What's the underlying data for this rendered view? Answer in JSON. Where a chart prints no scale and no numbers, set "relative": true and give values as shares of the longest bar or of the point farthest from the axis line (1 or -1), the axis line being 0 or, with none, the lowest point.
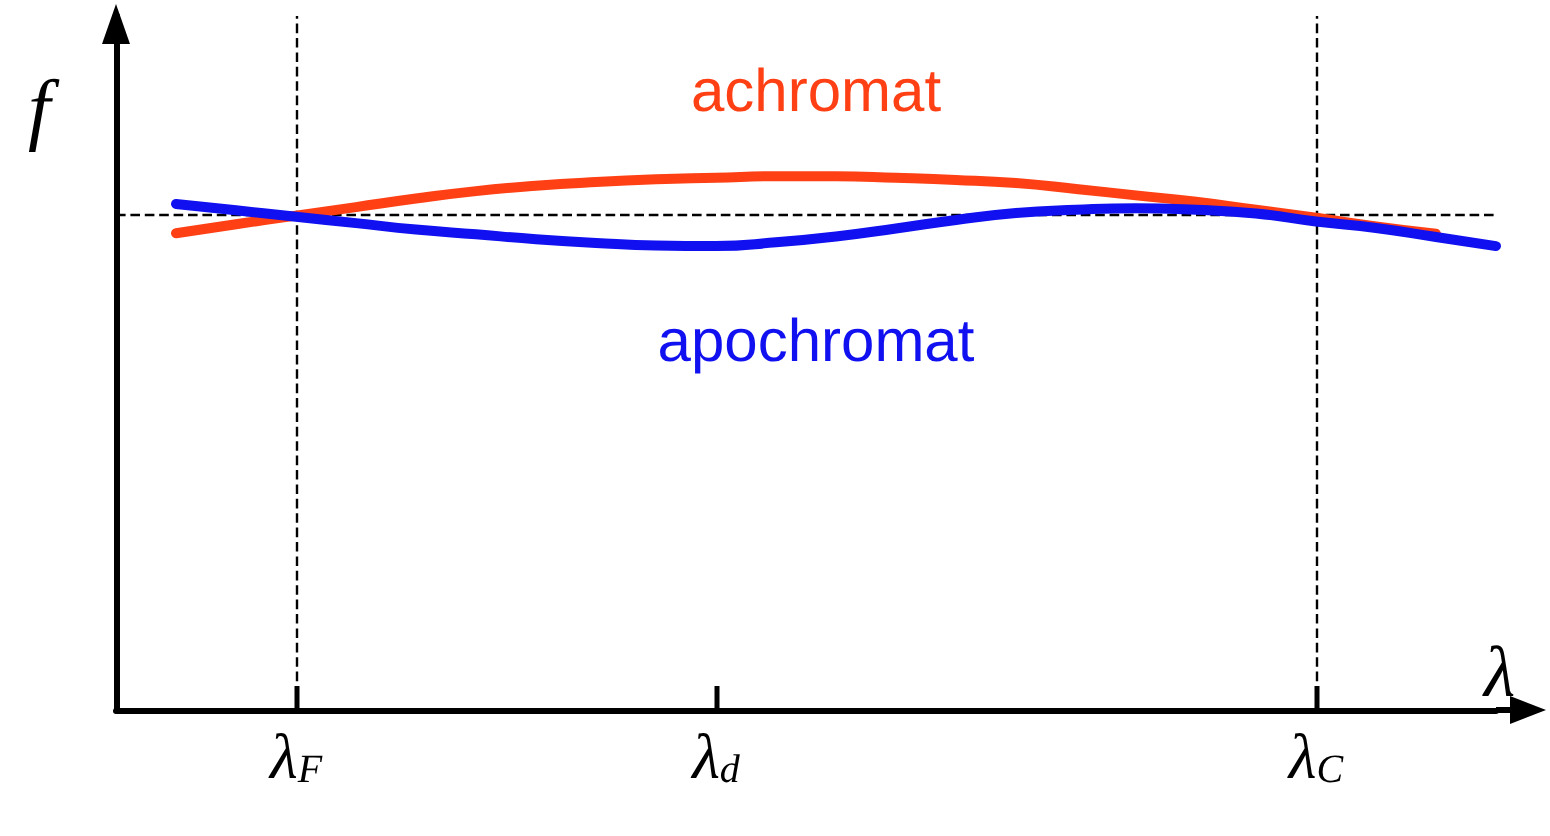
{
  "chart_data": {
    "type": "line",
    "relative": true,
    "xlabel": "λ",
    "ylabel": "f",
    "categories": [
      null,
      null,
      null,
      "λ$_{F}$",
      null,
      null,
      null,
      null,
      null,
      null,
      "λ$_{d}$",
      null,
      null,
      null,
      null,
      null,
      null,
      null,
      null,
      null,
      "λ$_{C}$",
      null,
      null,
      null
    ],
    "series": [
      {
        "name": "achromat",
        "color": "#ff4015",
        "values": [
          null,
          0.893,
          0.91,
          0.926,
          0.942,
          0.958,
          0.972,
          0.982,
          0.989,
          0.994,
          0.997,
          1,
          1,
          0.997,
          0.993,
          0.987,
          0.976,
          0.964,
          0.952,
          0.937,
          0.922,
          0.906,
          0.892,
          null
        ]
      },
      {
        "name": "apochromat",
        "color": "#1010f0",
        "values": [
          null,
          0.948,
          0.936,
          0.924,
          0.912,
          0.9,
          0.891,
          0.882,
          0.875,
          0.87,
          0.869,
          0.876,
          0.887,
          0.902,
          0.918,
          0.931,
          0.937,
          0.94,
          0.937,
          0.93,
          0.915,
          0.903,
          0.886,
          0.869
        ]
      }
    ],
    "ref_lines": [
      {
        "axis": "x",
        "value": "λ$_{F}$",
        "color": "#000000",
        "line_style": "dashed"
      },
      {
        "axis": "x",
        "value": "λ$_{C}$",
        "color": "#000000",
        "line_style": "dashed"
      },
      {
        "axis": "y",
        "value": 0.925,
        "color": "#000000",
        "line_style": "dashed"
      }
    ],
    "grid": false,
    "legend": false,
    "marker": "none",
    "line_style": "solid"
  }
}
